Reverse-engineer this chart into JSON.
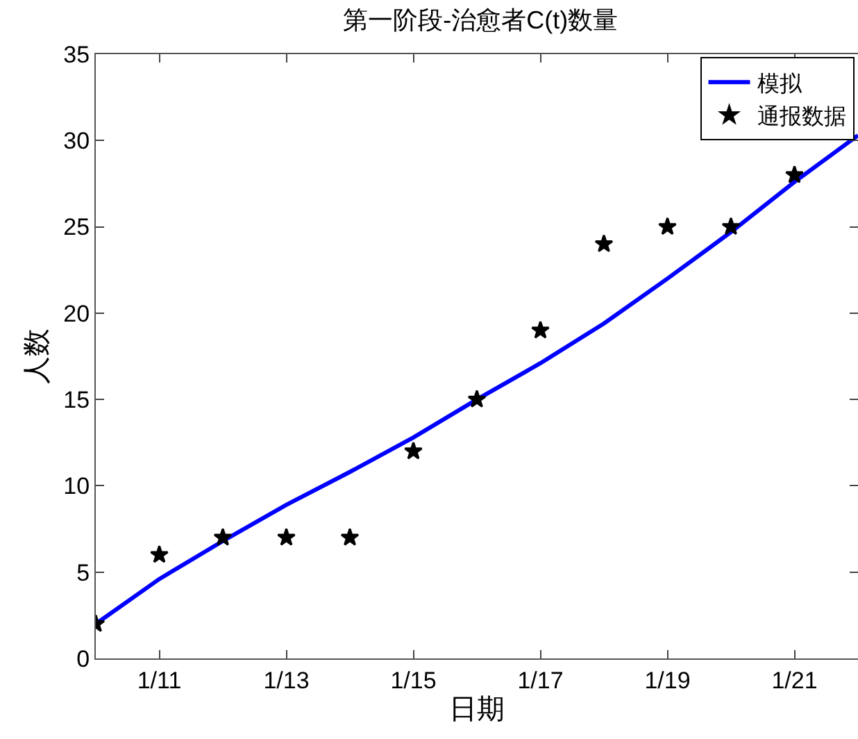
{
  "chart_data": {
    "type": "line",
    "title": "第一阶段-治愈者C(t)数量",
    "xlabel": "日期",
    "ylabel": "人数",
    "xlim": [
      "--01-10",
      "--01-22"
    ],
    "xticks": [
      {
        "value": "--01-11",
        "label": "1/11"
      },
      {
        "value": "--01-13",
        "label": "1/13"
      },
      {
        "value": "--01-15",
        "label": "1/15"
      },
      {
        "value": "--01-17",
        "label": "1/17"
      },
      {
        "value": "--01-19",
        "label": "1/19"
      },
      {
        "value": "--01-21",
        "label": "1/21"
      }
    ],
    "ylim": [
      0,
      35
    ],
    "yticks": [
      0,
      5,
      10,
      15,
      20,
      25,
      30,
      35
    ],
    "legend": "top right",
    "series": [
      {
        "name": "模拟",
        "color": "#0000ff",
        "marker": "none",
        "line_style": "solid",
        "x": [
          "--01-10",
          "--01-11",
          "--01-12",
          "--01-13",
          "--01-14",
          "--01-15",
          "--01-16",
          "--01-17",
          "--01-18",
          "--01-19",
          "--01-20",
          "--01-21",
          "--01-22"
        ],
        "values": [
          2,
          4.6,
          6.8,
          8.9,
          10.8,
          12.8,
          15,
          17.1,
          19.4,
          22,
          24.7,
          27.6,
          30.3
        ]
      },
      {
        "name": "通报数据",
        "type": "scatter",
        "color": "#000000",
        "marker": "star",
        "x": [
          "--01-10",
          "--01-11",
          "--01-12",
          "--01-13",
          "--01-14",
          "--01-15",
          "--01-16",
          "--01-17",
          "--01-18",
          "--01-19",
          "--01-20",
          "--01-21"
        ],
        "values": [
          2,
          6,
          7,
          7,
          7,
          12,
          15,
          19,
          24,
          25,
          25,
          28
        ]
      }
    ]
  }
}
